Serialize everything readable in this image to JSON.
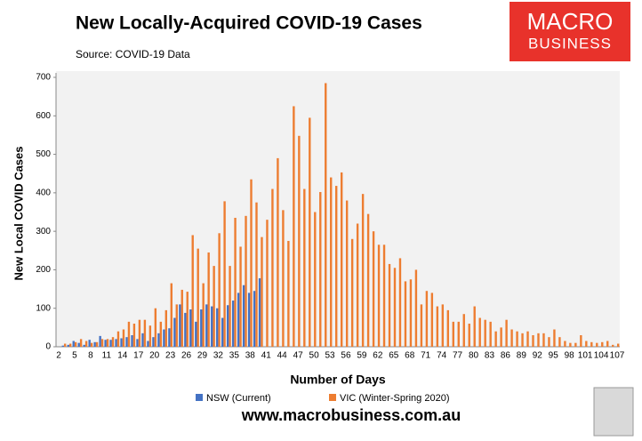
{
  "chart_data": {
    "type": "bar",
    "title": "New Locally-Acquired COVID-19 Cases",
    "subtitle": "Source: COVID-19 Data",
    "xlabel": "Number of Days",
    "ylabel": "New Local COVID Cases",
    "categories": [
      2,
      null,
      null,
      5,
      null,
      null,
      8,
      null,
      null,
      11,
      null,
      null,
      14,
      null,
      null,
      17,
      null,
      null,
      20,
      null,
      null,
      23,
      null,
      null,
      26,
      null,
      null,
      29,
      null,
      null,
      32,
      null,
      null,
      35,
      null,
      null,
      38,
      null,
      null,
      41,
      null,
      null,
      44,
      null,
      null,
      47,
      null,
      null,
      50,
      null,
      null,
      53,
      null,
      null,
      56,
      null,
      null,
      59,
      null,
      null,
      62,
      null,
      null,
      65,
      null,
      null,
      68,
      null,
      null,
      71,
      null,
      null,
      74,
      null,
      null,
      77,
      null,
      null,
      80,
      null,
      null,
      83,
      null,
      null,
      86,
      null,
      null,
      89,
      null,
      null,
      92,
      null,
      null,
      95,
      null,
      null,
      98,
      null,
      null,
      101,
      null,
      null,
      104,
      null,
      null,
      107
    ],
    "series": [
      {
        "name": "NSW (Current)",
        "color": "#4472c4",
        "values": [
          0,
          3,
          5,
          15,
          10,
          5,
          18,
          12,
          28,
          18,
          18,
          20,
          22,
          25,
          30,
          20,
          35,
          15,
          25,
          35,
          45,
          48,
          75,
          110,
          88,
          97,
          65,
          97,
          110,
          105,
          100,
          75,
          108,
          120,
          140,
          160,
          140,
          145,
          178,
          null,
          null,
          null,
          null,
          null,
          null,
          null,
          null,
          null,
          null,
          null,
          null,
          null,
          null,
          null,
          null,
          null,
          null,
          null,
          null,
          null,
          null,
          null,
          null,
          null,
          null,
          null,
          null,
          null,
          null,
          null,
          null,
          null,
          null,
          null,
          null,
          null,
          null,
          null,
          null,
          null,
          null,
          null,
          null,
          null,
          null,
          null,
          null,
          null,
          null,
          null,
          null,
          null,
          null,
          null,
          null,
          null,
          null,
          null,
          null,
          null,
          null,
          null,
          null,
          null,
          null,
          null
        ]
      },
      {
        "name": "VIC (Winter-Spring 2020)",
        "color": "#ed7d31",
        "values": [
          0,
          8,
          8,
          12,
          20,
          15,
          10,
          12,
          20,
          20,
          25,
          40,
          45,
          65,
          60,
          70,
          70,
          55,
          100,
          65,
          95,
          165,
          110,
          148,
          143,
          290,
          255,
          165,
          245,
          210,
          295,
          378,
          210,
          335,
          260,
          340,
          435,
          375,
          285,
          330,
          410,
          490,
          355,
          275,
          625,
          548,
          410,
          595,
          350,
          402,
          685,
          440,
          418,
          453,
          380,
          280,
          320,
          397,
          345,
          300,
          265,
          265,
          215,
          205,
          230,
          170,
          175,
          200,
          110,
          145,
          140,
          105,
          110,
          95,
          65,
          65,
          85,
          60,
          105,
          75,
          70,
          65,
          40,
          50,
          70,
          45,
          40,
          35,
          40,
          30,
          35,
          35,
          25,
          45,
          25,
          15,
          10,
          10,
          30,
          15,
          12,
          10,
          12,
          15,
          5,
          8
        ]
      }
    ],
    "ylim": [
      0,
      700
    ],
    "yticks": [
      0,
      100,
      200,
      300,
      400,
      500,
      600,
      700
    ],
    "grid": false
  },
  "logo": {
    "line1": "MACRO",
    "line2": "BUSINESS"
  },
  "footer": "www.macrobusiness.com.au"
}
